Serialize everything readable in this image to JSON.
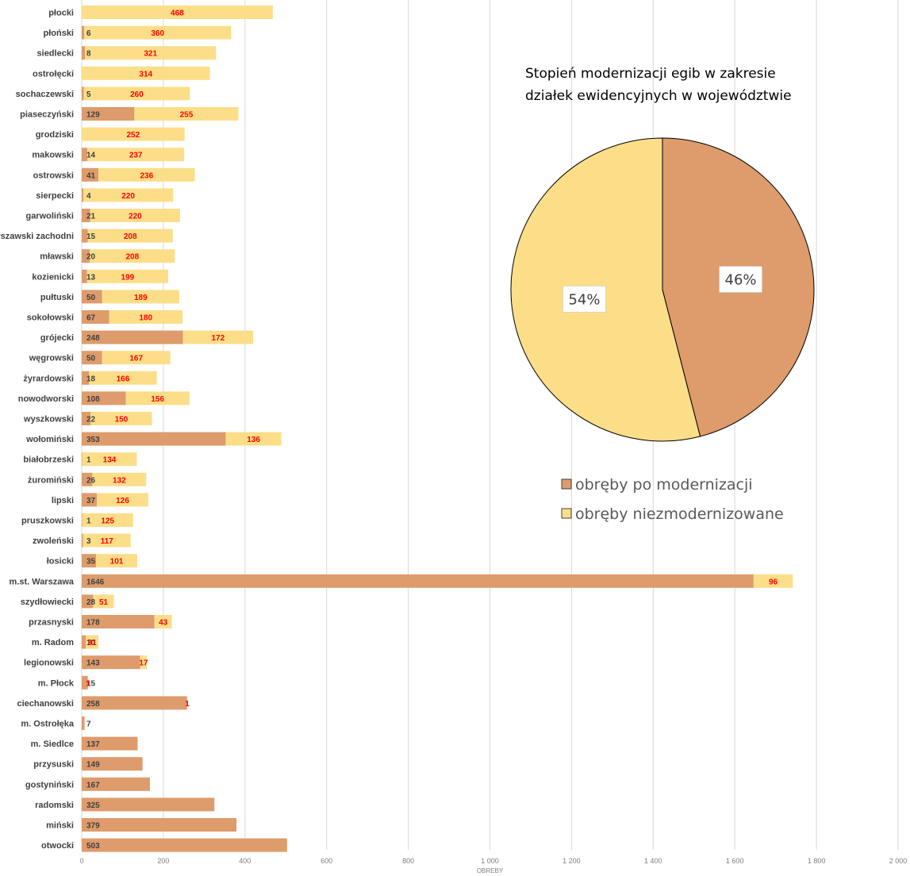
{
  "colors": {
    "modernized": "#de9b6b",
    "not_modernized": "#fcde89",
    "grid": "#d9d9d9",
    "red_label": "#ff0000"
  },
  "chart_data": [
    {
      "type": "bar",
      "orientation": "horizontal",
      "stacked": true,
      "xlabel": "OBREBY",
      "xlim": [
        0,
        2000
      ],
      "x_ticks": [
        "0",
        "200",
        "400",
        "600",
        "800",
        "1 000",
        "1 200",
        "1 400",
        "1 600",
        "1 800",
        "2 000"
      ],
      "grid": true,
      "categories": [
        "płocki",
        "płoński",
        "siedlecki",
        "ostrołęcki",
        "sochaczewski",
        "piaseczyński",
        "grodziski",
        "makowski",
        "ostrowski",
        "sierpecki",
        "garwoliński",
        "rszawski zachodni",
        "mławski",
        "kozienicki",
        "pułtuski",
        "sokołowski",
        "grójecki",
        "węgrowski",
        "żyrardowski",
        "nowodworski",
        "wyszkowski",
        "wołomiński",
        "białobrzeski",
        "żuromiński",
        "lipski",
        "pruszkowski",
        "zwoleński",
        "łosicki",
        "m.st. Warszawa",
        "szydłowiecki",
        "przasnyski",
        "m. Radom",
        "legionowski",
        "m. Płock",
        "ciechanowski",
        "m. Ostrołęka",
        "m. Siedlce",
        "przysuski",
        "gostyniński",
        "radomski",
        "miński",
        "otwocki"
      ],
      "series": [
        {
          "name": "obręby po modernizacji",
          "values": [
            0,
            6,
            8,
            0,
            5,
            129,
            0,
            14,
            41,
            4,
            21,
            15,
            20,
            13,
            50,
            67,
            248,
            50,
            18,
            108,
            22,
            353,
            1,
            26,
            37,
            1,
            3,
            35,
            1646,
            28,
            178,
            10,
            143,
            15,
            258,
            7,
            137,
            149,
            167,
            325,
            379,
            503
          ],
          "labels": [
            "",
            "6",
            "8",
            "",
            "5",
            "129",
            "",
            "14",
            "41",
            "4",
            "21",
            "15",
            "20",
            "13",
            "50",
            "67",
            "248",
            "50",
            "18",
            "108",
            "22",
            "353",
            "1",
            "26",
            "37",
            "1",
            "3",
            "35",
            "1646",
            "28",
            "178",
            "10",
            "143",
            "15",
            "258",
            "7",
            "137",
            "149",
            "167",
            "325",
            "379",
            "503"
          ]
        },
        {
          "name": "obręby niezmodernizowane",
          "values": [
            468,
            360,
            321,
            314,
            260,
            255,
            252,
            237,
            236,
            220,
            220,
            208,
            208,
            199,
            189,
            180,
            172,
            167,
            166,
            156,
            150,
            136,
            134,
            132,
            126,
            125,
            117,
            101,
            96,
            51,
            43,
            31,
            17,
            1,
            1,
            0,
            0,
            0,
            0,
            0,
            0,
            0
          ],
          "labels": [
            "468",
            "360",
            "321",
            "314",
            "260",
            "255",
            "252",
            "237",
            "236",
            "220",
            "220",
            "208",
            "208",
            "199",
            "189",
            "180",
            "172",
            "167",
            "166",
            "156",
            "150",
            "136",
            "134",
            "132",
            "126",
            "125",
            "117",
            "101",
            "96",
            "51",
            "43",
            "31",
            "17",
            "1",
            "1",
            "",
            "",
            "",
            "",
            "",
            "",
            ""
          ]
        }
      ]
    },
    {
      "type": "pie",
      "title": "Stopień modernizacji egib w zakresie działek ewidencyjnych w województwie",
      "title_lines": [
        "Stopień modernizacji egib w zakresie",
        "działek ewidencyjnych w województwie"
      ],
      "slices": [
        {
          "name": "obręby po modernizacji",
          "value": 46,
          "label": "46%"
        },
        {
          "name": "obręby niezmodernizowane",
          "value": 54,
          "label": "54%"
        }
      ],
      "legend": [
        "obręby po modernizacji",
        "obręby niezmodernizowane"
      ]
    }
  ]
}
